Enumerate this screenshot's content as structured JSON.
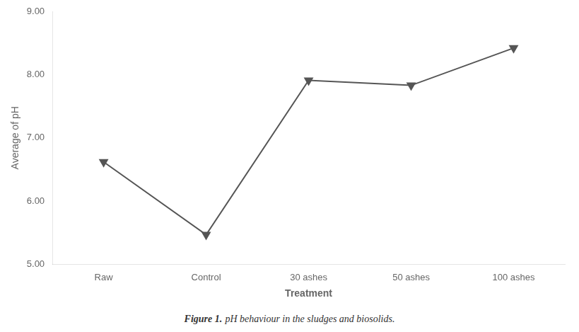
{
  "chart_data": {
    "type": "line",
    "categories": [
      "Raw",
      "Control",
      "30 ashes",
      "50 ashes",
      "100 ashes"
    ],
    "values": [
      6.62,
      5.47,
      7.91,
      7.83,
      8.42
    ],
    "color": "#555555",
    "marker": "triangle_down",
    "xlabel": "Treatment",
    "ylabel": "Average of pH",
    "ylim": [
      5.0,
      9.0
    ],
    "yticks": [
      {
        "value": 5,
        "label": "5.00"
      },
      {
        "value": 6,
        "label": "6.00"
      },
      {
        "value": 7,
        "label": "7.00"
      },
      {
        "value": 8,
        "label": "8.00"
      },
      {
        "value": 9,
        "label": "9.00"
      }
    ],
    "grid": false,
    "annotations": [
      "Figure 1.",
      "pH behaviour in the sludges and biosolids."
    ]
  }
}
